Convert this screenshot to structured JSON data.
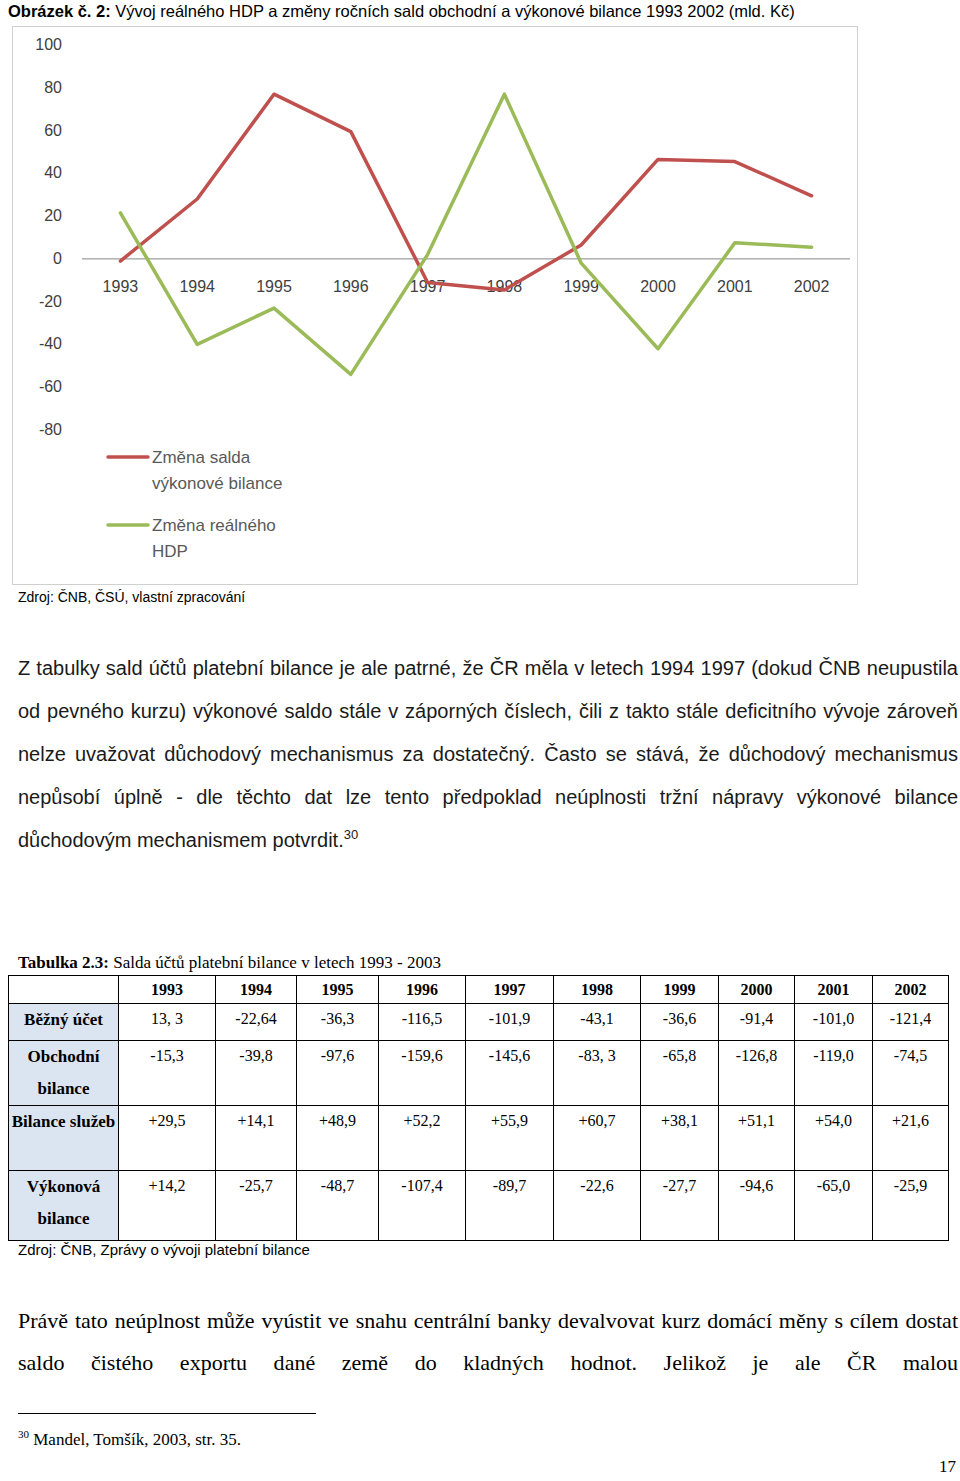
{
  "figure": {
    "label": "Obrázek č. 2:",
    "caption": "Vývoj reálného HDP a změny ročních sald obchodní a výkonové bilance 1993 2002 (mld. Kč)",
    "source": "Zdroj: ČNB, ČSÚ, vlastní zpracování"
  },
  "chart_data": {
    "type": "line",
    "categories": [
      "1993",
      "1994",
      "1995",
      "1996",
      "1997",
      "1998",
      "1999",
      "2000",
      "2001",
      "2002"
    ],
    "series": [
      {
        "name": "Změna salda výkonové bilance",
        "color": "#c0504d",
        "values": [
          -1,
          28,
          77,
          59.5,
          -11,
          -14.5,
          6.5,
          46.5,
          45.5,
          29.5
        ]
      },
      {
        "name": "Změna reálného HDP",
        "color": "#9bbb59",
        "values": [
          21.5,
          -40,
          -23,
          -54,
          2,
          77,
          -2,
          -42,
          7.5,
          5.5
        ]
      }
    ],
    "ylim": [
      -80,
      100
    ],
    "yticks": [
      -80,
      -60,
      -40,
      -20,
      0,
      20,
      40,
      60,
      80,
      100
    ],
    "grid": false,
    "legend": "bottom-left"
  },
  "paragraphs": [
    {
      "text": "Z tabulky sald účtů platební bilance je ale patrné, že ČR měla v letech 1994 1997 (dokud ČNB neupustila od pevného kurzu) výkonové saldo stále v záporných číslech, čili z takto stále deficitního vývoje zároveň nelze uvažovat důchodový mechanismus za dostatečný. Často se stává, že důchodový mechanismus nepůsobí úplně - dle těchto dat lze tento předpoklad neúplnosti tržní nápravy výkonové bilance důchodovým mechanismem potvrdit.",
      "footnote_ref": "30"
    },
    {
      "text": "Právě tato neúplnost může vyústit ve snahu centrální banky devalvovat kurz domácí měny s cílem dostat saldo čistého exportu dané země do kladných hodnot. Jelikož je ale ČR malou"
    }
  ],
  "table": {
    "label": "Tabulka 2.3:",
    "caption": "Salda účtů platební bilance v letech 1993 - 2003",
    "header": [
      "1993",
      "1994",
      "1995",
      "1996",
      "1997",
      "1998",
      "1999",
      "2000",
      "2001",
      "2002"
    ],
    "rows": [
      {
        "label": "Běžný účet",
        "values": [
          "13, 3",
          "-22,64",
          "-36,3",
          "-116,5",
          "-101,9",
          "-43,1",
          "-36,6",
          "-91,4",
          "-101,0",
          "-121,4"
        ]
      },
      {
        "label": "Obchodní bilance",
        "values": [
          "-15,3",
          "-39,8",
          "-97,6",
          "-159,6",
          "-145,6",
          "-83, 3",
          "-65,8",
          "-126,8",
          "-119,0",
          "-74,5"
        ]
      },
      {
        "label": "Bilance služeb",
        "values": [
          "+29,5",
          "+14,1",
          "+48,9",
          "+52,2",
          "+55,9",
          "+60,7",
          "+38,1",
          "+51,1",
          "+54,0",
          "+21,6"
        ]
      },
      {
        "label": "Výkonová bilance",
        "values": [
          "+14,2",
          "-25,7",
          "-48,7",
          "-107,4",
          "-89,7",
          "-22,6",
          "-27,7",
          "-94,6",
          "-65,0",
          "-25,9"
        ]
      }
    ],
    "source": "Zdroj: ČNB, Zprávy o vývoji platební bilance"
  },
  "footnote": {
    "number": "30",
    "text": "Mandel, Tomšík, 2003, str. 35."
  },
  "page_number": "17"
}
